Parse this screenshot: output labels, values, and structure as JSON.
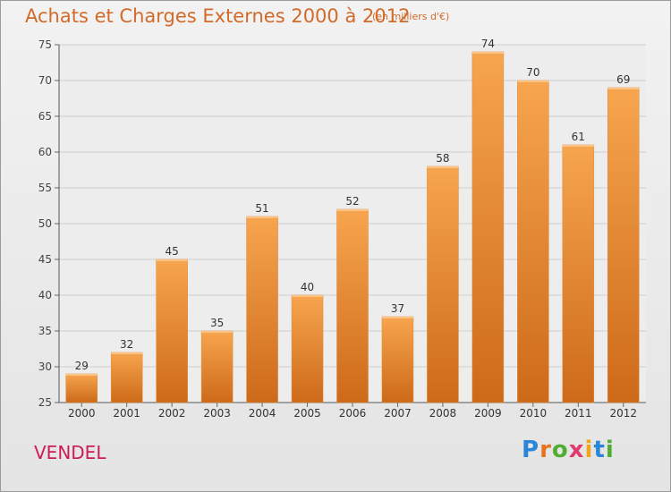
{
  "title": "Achats et Charges Externes 2000 à 2012",
  "subtitle": "(en milliers d'€)",
  "town": "VENDEL",
  "logo": {
    "letters": [
      "P",
      "r",
      "o",
      "x",
      "i",
      "t",
      "i"
    ],
    "colors": [
      "#2a86d6",
      "#e8731e",
      "#4fae32",
      "#e23a6e",
      "#f2a51a",
      "#2a86d6",
      "#4fae32"
    ]
  },
  "colors": {
    "bar": "#f19a3e",
    "bar_dark": "#d06d1c",
    "title": "#d26a2a",
    "town": "#cc1c57"
  },
  "chart_data": {
    "type": "bar",
    "categories": [
      "2000",
      "2001",
      "2002",
      "2003",
      "2004",
      "2005",
      "2006",
      "2007",
      "2008",
      "2009",
      "2010",
      "2011",
      "2012"
    ],
    "values": [
      29,
      32,
      45,
      35,
      51,
      40,
      52,
      37,
      58,
      74,
      70,
      61,
      69
    ],
    "ylim": [
      25,
      75
    ],
    "yticks": [
      25,
      30,
      35,
      40,
      45,
      50,
      55,
      60,
      65,
      70,
      75
    ],
    "grid": true,
    "legend": "none"
  }
}
